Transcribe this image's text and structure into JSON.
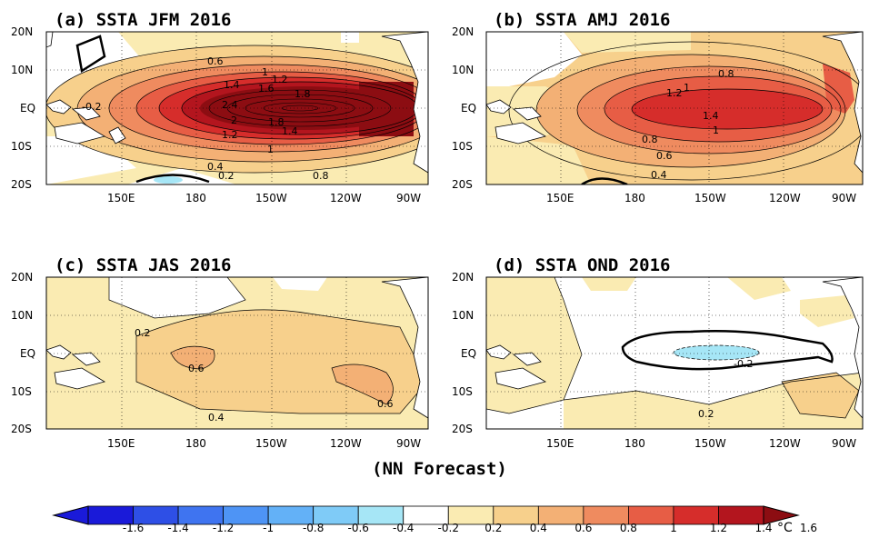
{
  "panels": [
    {
      "id": "a",
      "title": "(a) SSTA  JFM 2016",
      "labels": [
        "0.6",
        "1",
        "1.2",
        "1.4",
        "1.6",
        "1.8",
        "2.4",
        "2",
        "1.2",
        "1.8",
        "1.4",
        "1",
        "0.4",
        "0.2",
        "0.8",
        "-0.2",
        "2",
        "0.2",
        "0.2"
      ]
    },
    {
      "id": "b",
      "title": "(b) SSTA  AMJ 2016",
      "labels": [
        "0.8",
        "1.2",
        "1",
        "1.4",
        "1",
        "0.8",
        "0.6",
        "0.4"
      ]
    },
    {
      "id": "c",
      "title": "(c) SSTA  JAS 2016",
      "labels": [
        "0.2",
        "0.6",
        "0.6",
        "0.4"
      ]
    },
    {
      "id": "d",
      "title": "(d) SSTA  OND 2016",
      "labels": [
        "-0.2",
        "0.2"
      ]
    }
  ],
  "axes": {
    "lat_ticks": [
      "20N",
      "10N",
      "EQ",
      "10S",
      "20S"
    ],
    "lon_ticks": [
      "150E",
      "180",
      "150W",
      "120W",
      "90W"
    ]
  },
  "footer": "(NN Forecast)",
  "colorbar": {
    "ticks": [
      "-1.6",
      "-1.4",
      "-1.2",
      "-1",
      "-0.8",
      "-0.6",
      "-0.4",
      "-0.2",
      "0.2",
      "0.4",
      "0.6",
      "0.8",
      "1",
      "1.2",
      "1.4",
      "1.6"
    ],
    "unit": "°C",
    "colors": [
      "#1a1ad9",
      "#2e4fe6",
      "#3f74f0",
      "#4e94f5",
      "#63b1f7",
      "#7fcbf7",
      "#a6e6f6",
      "#ffffff",
      "#faebb2",
      "#f7d08c",
      "#f3b075",
      "#ef8b5f",
      "#e75d45",
      "#d62d2b",
      "#b3151e"
    ]
  },
  "colors": {
    "land": "#ffffff",
    "c02": "#faebb2",
    "c04": "#f7d08c",
    "c06": "#f3b075",
    "c08": "#ef8b5f",
    "c10": "#e75d45",
    "c12": "#d62d2b",
    "c14": "#b3151e",
    "c16": "#8c0d12",
    "cold": "#a6e6f6"
  }
}
